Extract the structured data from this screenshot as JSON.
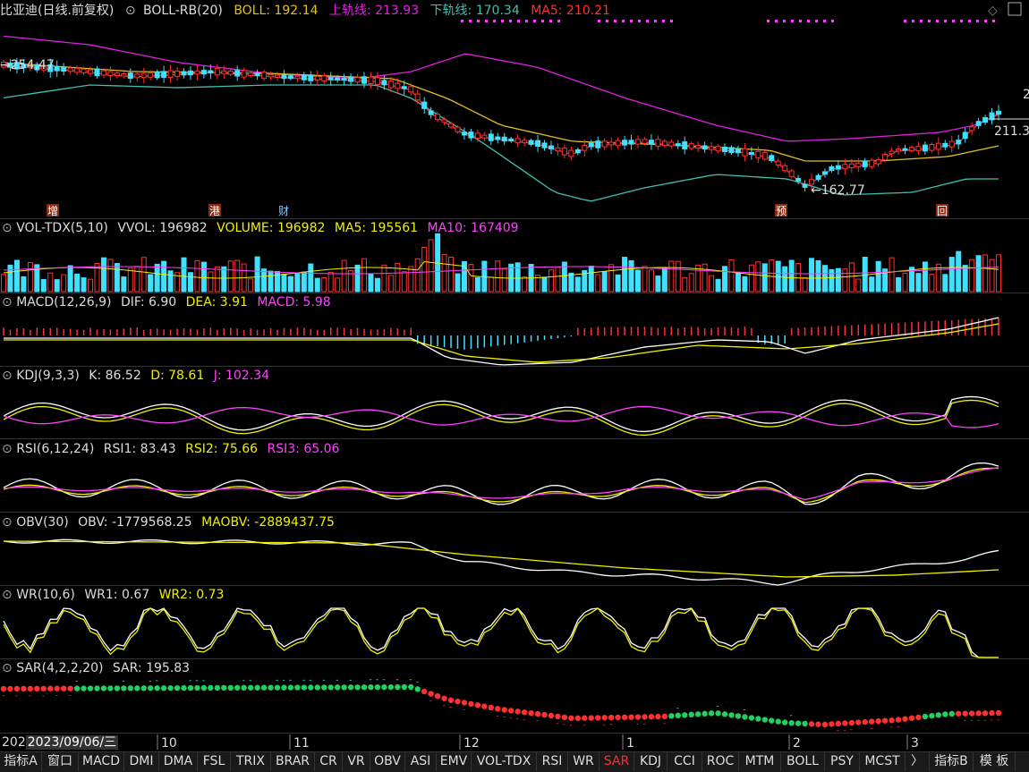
{
  "window": {
    "title": "比亚迪(日线.前复权)"
  },
  "chart_data": [
    {
      "type": "candlestick",
      "indicator": "BOLL-RB(20)",
      "values": {
        "BOLL": "192.14",
        "上轨线": "213.93",
        "下轨线": "170.34",
        "MA5": "210.21"
      },
      "annotations": {
        "high_mark": "254.47",
        "low_mark": "162.77",
        "last_price": "211.3"
      },
      "event_badges": [
        "增",
        "港",
        "财",
        "预",
        "回"
      ]
    },
    {
      "type": "bar",
      "indicator": "VOL-TDX(5,10)",
      "values": {
        "VVOL": "196982",
        "VOLUME": "196982",
        "MA5": "195561",
        "MA10": "167409"
      }
    },
    {
      "type": "bar",
      "indicator": "MACD(12,26,9)",
      "values": {
        "DIF": "6.90",
        "DEA": "3.91",
        "MACD": "5.98"
      }
    },
    {
      "type": "line",
      "indicator": "KDJ(9,3,3)",
      "values": {
        "K": "86.52",
        "D": "78.61",
        "J": "102.34"
      }
    },
    {
      "type": "line",
      "indicator": "RSI(6,12,24)",
      "values": {
        "RSI1": "83.43",
        "RSI2": "75.66",
        "RSI3": "65.06"
      }
    },
    {
      "type": "line",
      "indicator": "OBV(30)",
      "values": {
        "OBV": "-1779568.25",
        "MAOBV": "-2889437.75"
      }
    },
    {
      "type": "line",
      "indicator": "WR(10,6)",
      "values": {
        "WR1": "0.67",
        "WR2": "0.73"
      }
    },
    {
      "type": "scatter",
      "indicator": "SAR(4,2,2,20)",
      "values": {
        "SAR": "195.83"
      }
    }
  ],
  "time_axis": {
    "cursor_date": "2023/09/06/三",
    "year_prefix": "202",
    "month_labels": [
      "10",
      "11",
      "12",
      "1",
      "2",
      "3"
    ]
  },
  "right_axis": {
    "label": "2"
  },
  "tabs": [
    "指标A",
    "窗口",
    "MACD",
    "DMI",
    "DMA",
    "FSL",
    "TRIX",
    "BRAR",
    "CR",
    "VR",
    "OBV",
    "ASI",
    "EMV",
    "VOL-TDX",
    "RSI",
    "WR",
    "SAR",
    "KDJ",
    "CCI",
    "ROC",
    "MTM",
    "BOLL",
    "PSY",
    "MCST",
    "〉",
    "指标B",
    "模 板"
  ],
  "active_tab": "SAR",
  "colors": {
    "up": "#ff3030",
    "down": "#40e0ff",
    "boll_mid": "#e0c020",
    "boll_upper": "#e020e0",
    "boll_lower": "#40c0b0",
    "yellow": "#f0f000",
    "magenta": "#ff40ff",
    "white": "#ffffff",
    "sar_green": "#20d060"
  }
}
